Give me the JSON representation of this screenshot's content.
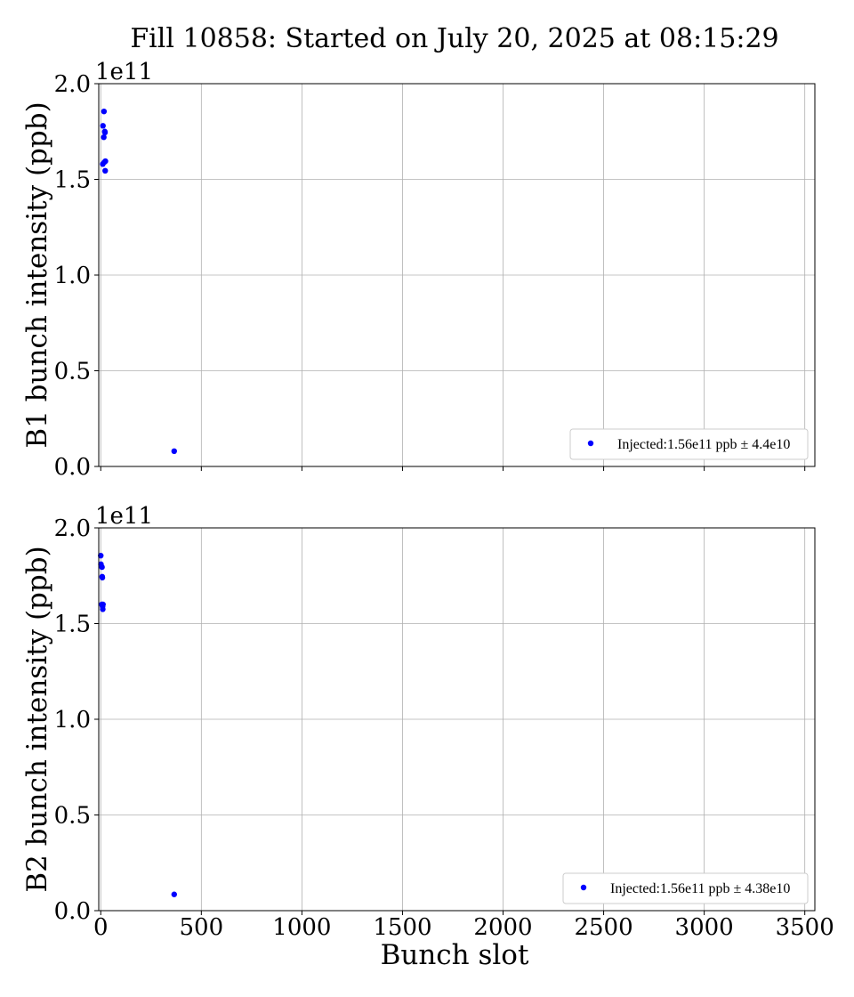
{
  "title": "Fill 10858: Started on July 20, 2025 at 08:15:29",
  "xlabel": "Bunch slot",
  "chart_data": [
    {
      "type": "scatter",
      "ylabel": "B1 bunch intensity (ppb)",
      "offset_text": "1e11",
      "xlim": [
        -10,
        3550
      ],
      "ylim": [
        0,
        200000000000.0
      ],
      "y_ticks": [
        "0.0",
        "0.5",
        "1.0",
        "1.5",
        "2.0"
      ],
      "x_ticks": [],
      "grid": true,
      "legend_placement": "lower-right",
      "series": [
        {
          "name": "Injected:1.56e11 ppb ± 4.4e10",
          "color": "#0000ff",
          "x": [
            10,
            11,
            15,
            16,
            18,
            20,
            21,
            22,
            23,
            365
          ],
          "y": [
            158000000000.0,
            178000000000.0,
            172000000000.0,
            185500000000.0,
            159000000000.0,
            175000000000.0,
            174500000000.0,
            154500000000.0,
            159500000000.0,
            8000000000.0
          ]
        }
      ]
    },
    {
      "type": "scatter",
      "ylabel": "B2 bunch intensity (ppb)",
      "offset_text": "1e11",
      "xlim": [
        -10,
        3550
      ],
      "ylim": [
        0,
        200000000000.0
      ],
      "y_ticks": [
        "0.0",
        "0.5",
        "1.0",
        "1.5",
        "2.0"
      ],
      "x_ticks": [
        "0",
        "500",
        "1000",
        "1500",
        "2000",
        "2500",
        "3000",
        "3500"
      ],
      "grid": true,
      "legend_placement": "lower-right",
      "series": [
        {
          "name": "Injected:1.56e11 ppb ± 4.38e10",
          "color": "#0000ff",
          "x": [
            0,
            1,
            5,
            6,
            7,
            8,
            9,
            10,
            11,
            365
          ],
          "y": [
            185500000000.0,
            181000000000.0,
            160000000000.0,
            179500000000.0,
            174500000000.0,
            174000000000.0,
            159000000000.0,
            157500000000.0,
            160000000000.0,
            8500000000.0
          ]
        }
      ]
    }
  ]
}
